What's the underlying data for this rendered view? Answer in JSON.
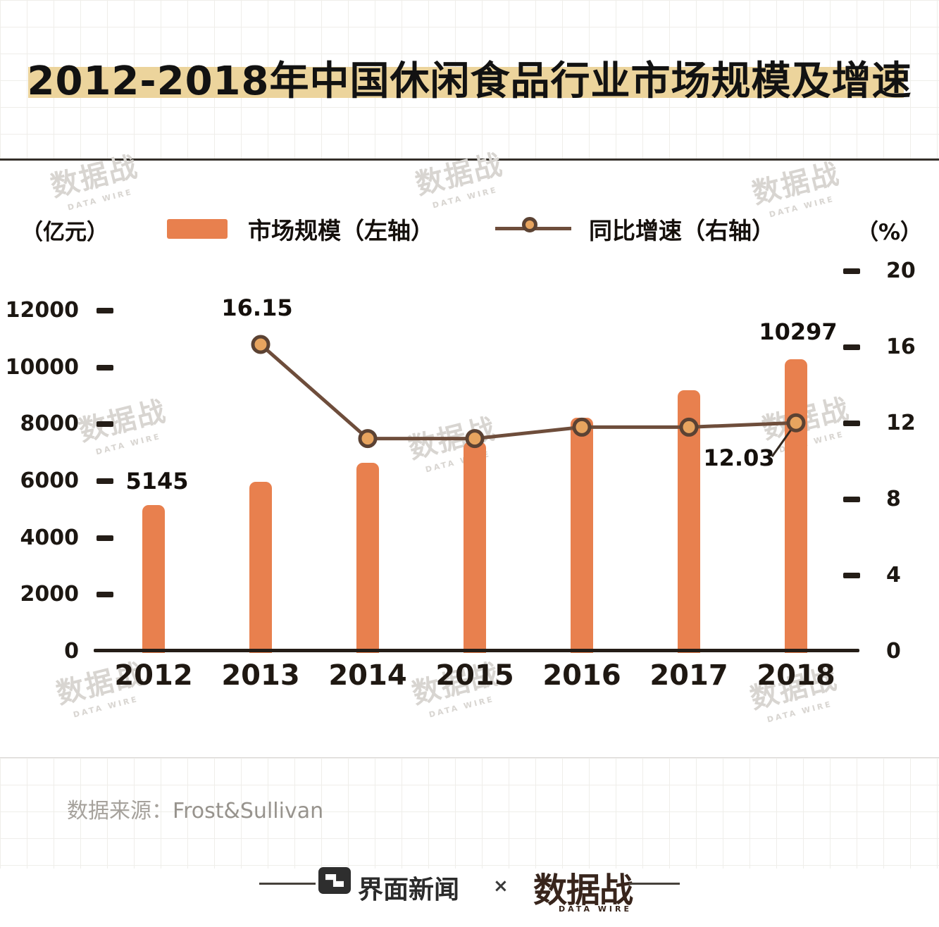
{
  "page": {
    "title": "2012-2018年中国休闲食品行业市场规模及增速",
    "source": {
      "label": "数据来源：",
      "value": "Frost&Sullivan"
    },
    "watermark": {
      "text": "数据战",
      "subtext": "DATA WIRE"
    },
    "footer": {
      "jiemian": "界面新闻",
      "separator": "×",
      "datawire": "数据战",
      "datawire_sub": "DATA WIRE"
    }
  },
  "chart_data": {
    "type": "bar+line",
    "title": "2012-2018年中国休闲食品行业市场规模及增速",
    "categories": [
      "2012",
      "2013",
      "2014",
      "2015",
      "2016",
      "2017",
      "2018"
    ],
    "series": [
      {
        "name": "市场规模（左轴）",
        "type": "bar",
        "axis": "left",
        "unit": "亿元",
        "values": [
          5145,
          5976,
          6646,
          7388,
          8224,
          9191,
          10297
        ],
        "color": "#E8804E"
      },
      {
        "name": "同比增速（右轴）",
        "type": "line",
        "axis": "right",
        "unit": "%",
        "values": [
          null,
          16.15,
          11.2,
          11.2,
          11.8,
          11.8,
          12.03
        ],
        "color": "#6E4D3B",
        "marker": {
          "fill": "#E7A45F",
          "stroke": "#5B4233"
        }
      }
    ],
    "left_axis": {
      "label": "（亿元）",
      "ticks": [
        0,
        2000,
        4000,
        6000,
        8000,
        10000,
        12000
      ],
      "range": [
        0,
        12000
      ]
    },
    "right_axis": {
      "label": "（%）",
      "ticks": [
        0,
        4,
        8,
        12,
        16,
        20
      ],
      "range": [
        0,
        20
      ]
    },
    "annotations": {
      "bar_first": "5145",
      "bar_last": "10297",
      "line_first": "16.15",
      "line_last": "12.03"
    },
    "legend_position": "top",
    "grid": false
  }
}
